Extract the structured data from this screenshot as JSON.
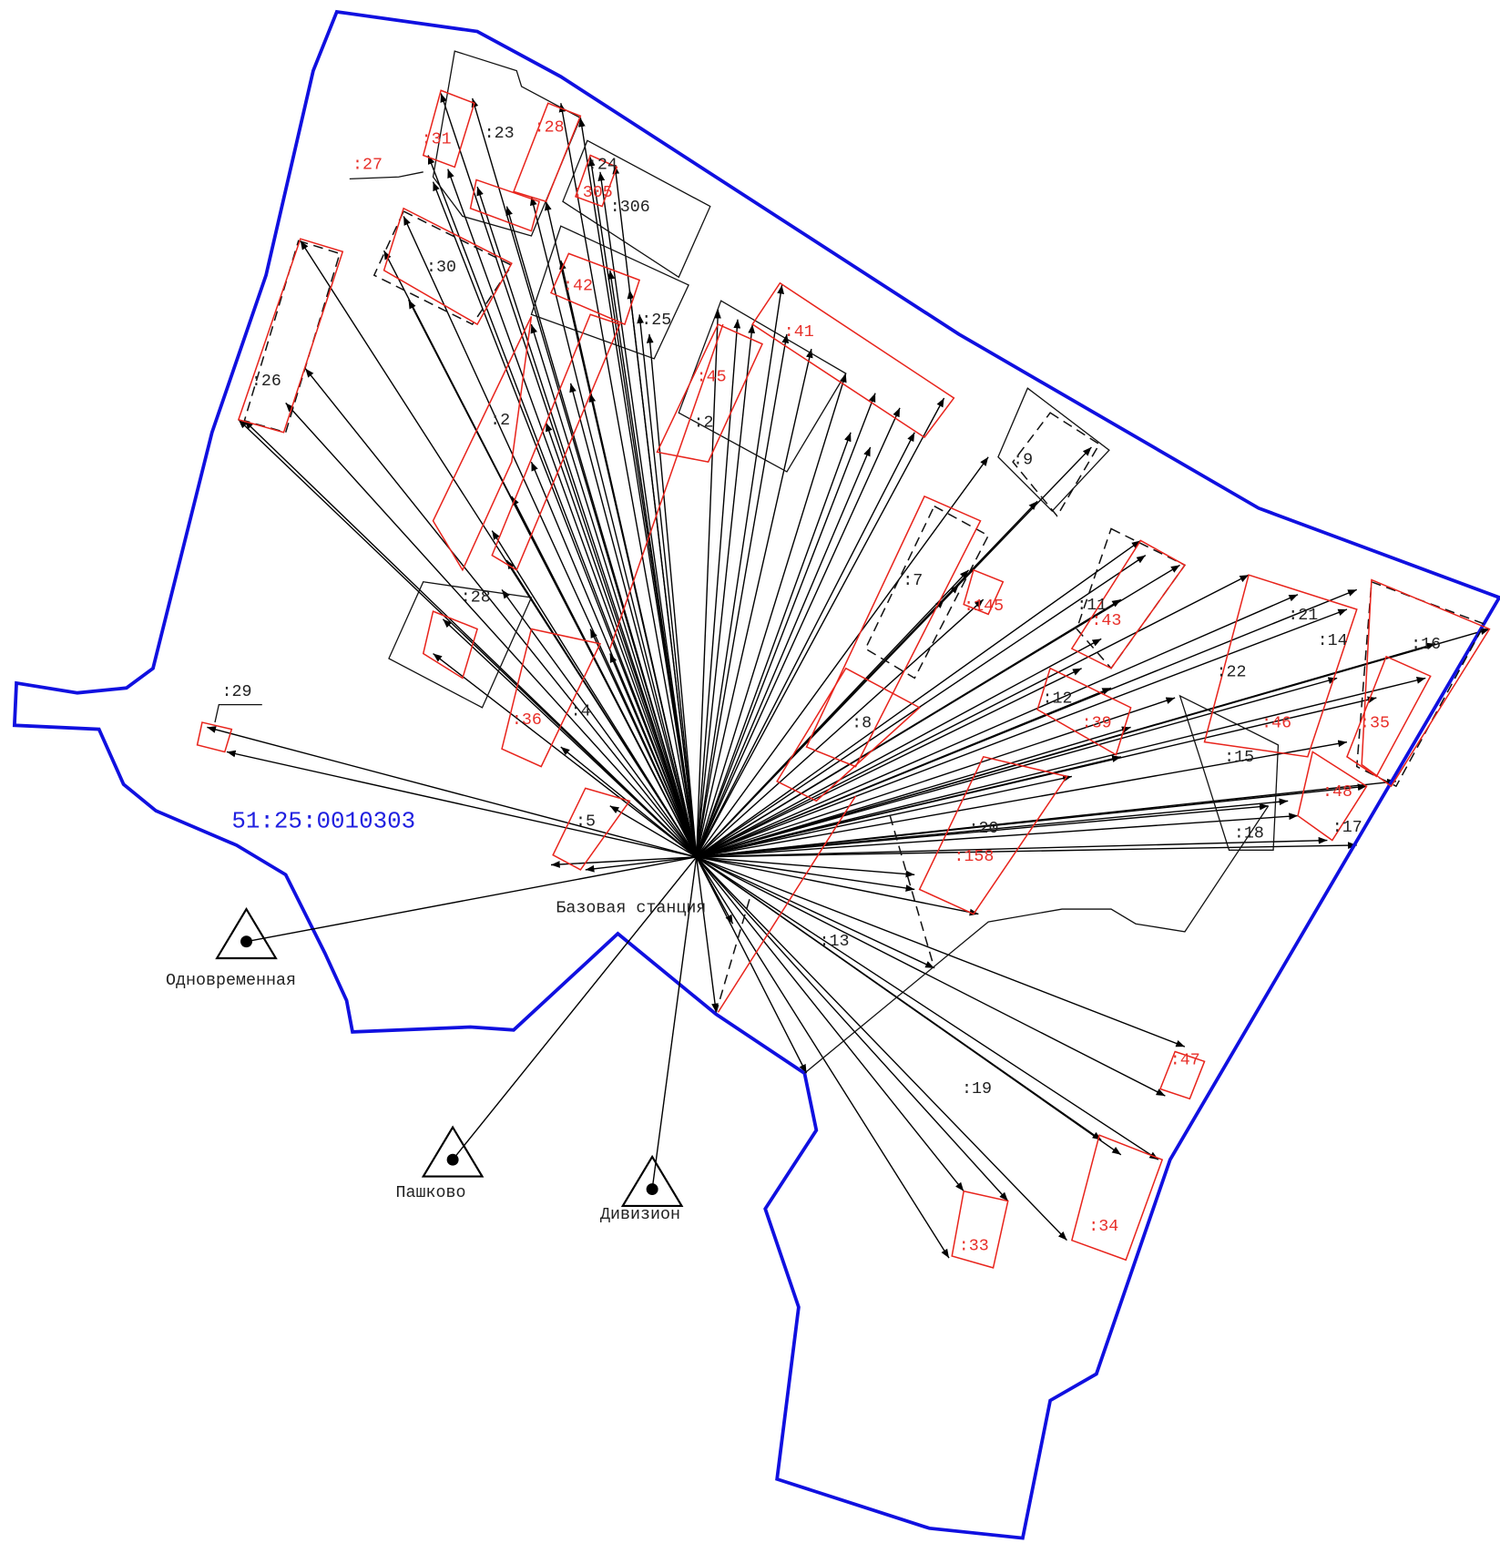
{
  "quarter": "51:25:0010303",
  "base_station": "Базовая станция",
  "stations": [
    "Одновременная",
    "Пашково",
    "Дивизион"
  ],
  "parcels": [
    ":23",
    ":24",
    ":306",
    ":30",
    ":25",
    ":26",
    ":2",
    ":2",
    ":9",
    ":7",
    ":28",
    ":4",
    ":5",
    ":29",
    ":8",
    ":13",
    ":19",
    ":20",
    ":22",
    ":21",
    ":14",
    ":16",
    ":15",
    ":18",
    ":17",
    ":11",
    ":12"
  ],
  "new_parcels": [
    ":27",
    ":31",
    ":28",
    ":305",
    ":42",
    ":41",
    ":45",
    ":145",
    ":43",
    ":46",
    ":35",
    ":48",
    ":158",
    ":47",
    ":34",
    ":33",
    ":36",
    ":39"
  ]
}
